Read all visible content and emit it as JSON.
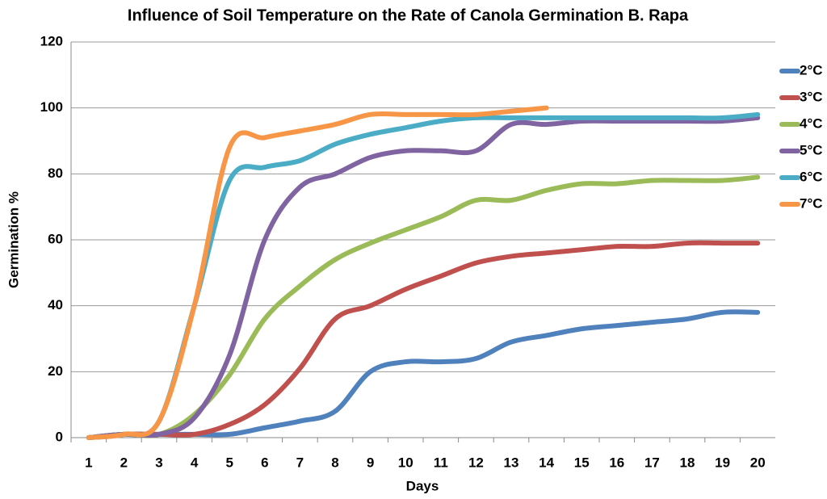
{
  "chart_data": {
    "type": "line",
    "title": "Influence of Soil Temperature on the Rate of Canola Germination B. Rapa",
    "xlabel": "Days",
    "ylabel": "Germination %",
    "categories": [
      "1",
      "2",
      "3",
      "4",
      "5",
      "6",
      "7",
      "8",
      "9",
      "10",
      "11",
      "12",
      "13",
      "14",
      "15",
      "16",
      "17",
      "18",
      "19",
      "20"
    ],
    "ylim": [
      0,
      120
    ],
    "yticks": [
      0,
      20,
      40,
      60,
      80,
      100,
      120
    ],
    "grid": true,
    "legend": "right",
    "series": [
      {
        "name": "2°C",
        "color": "#4f81bd",
        "values": [
          0,
          1,
          1,
          1,
          1,
          3,
          5,
          8,
          20,
          23,
          23,
          24,
          29,
          31,
          33,
          34,
          35,
          36,
          38,
          38
        ]
      },
      {
        "name": "3°C",
        "color": "#c0504d",
        "values": [
          0,
          1,
          1,
          1,
          4,
          10,
          21,
          36,
          40,
          45,
          49,
          53,
          55,
          56,
          57,
          58,
          58,
          59,
          59,
          59
        ]
      },
      {
        "name": "4°C",
        "color": "#9bbb59",
        "values": [
          0,
          1,
          1,
          7,
          19,
          36,
          46,
          54,
          59,
          63,
          67,
          72,
          72,
          75,
          77,
          77,
          78,
          78,
          78,
          79
        ]
      },
      {
        "name": "5°C",
        "color": "#8064a2",
        "values": [
          0,
          1,
          1,
          6,
          25,
          60,
          76,
          80,
          85,
          87,
          87,
          87,
          95,
          95,
          96,
          96,
          96,
          96,
          96,
          97
        ]
      },
      {
        "name": "6°C",
        "color": "#4bacc6",
        "values": [
          0,
          1,
          5,
          40,
          78,
          82,
          84,
          89,
          92,
          94,
          96,
          97,
          97,
          97,
          97,
          97,
          97,
          97,
          97,
          98
        ]
      },
      {
        "name": "7°C",
        "color": "#f79646",
        "values": [
          0,
          1,
          5,
          40,
          88,
          91,
          93,
          95,
          98,
          98,
          98,
          98,
          99,
          100,
          null,
          null,
          null,
          null,
          null,
          null
        ]
      }
    ]
  }
}
